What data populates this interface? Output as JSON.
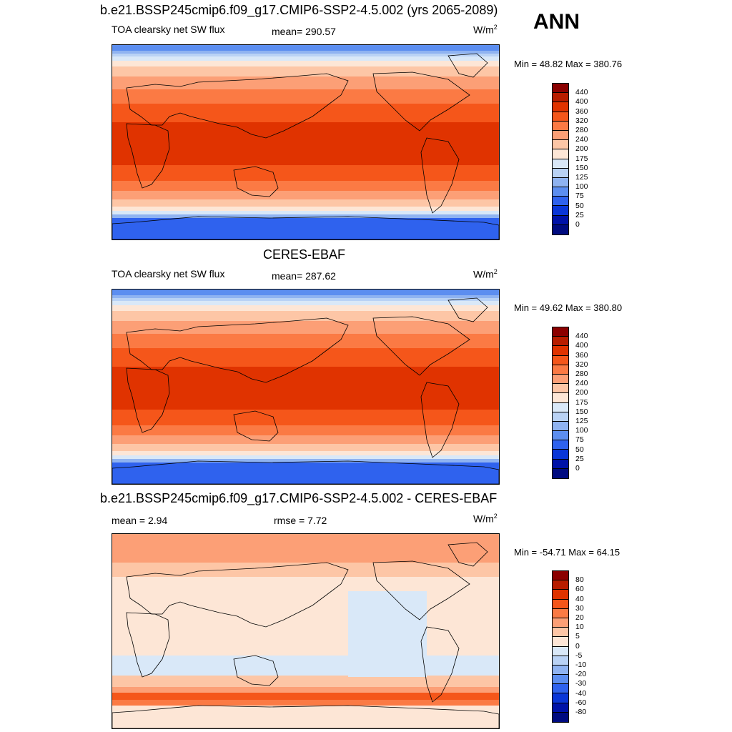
{
  "ann_label": "ANN",
  "panels": [
    {
      "title": "b.e21.BSSP245cmip6.f09_g17.CMIP6-SSP2-4.5.002 (yrs 2065-2089)",
      "left_label": "TOA clearsky net SW flux",
      "center_label": "mean= 290.57",
      "units_base": "W/m",
      "units_sup": "2",
      "minmax": "Min =  48.82 Max = 380.76"
    },
    {
      "title": "CERES-EBAF",
      "left_label": "TOA clearsky net SW flux",
      "center_label": "mean= 287.62",
      "units_base": "W/m",
      "units_sup": "2",
      "minmax": "Min =  49.62 Max = 380.80"
    },
    {
      "title": "b.e21.BSSP245cmip6.f09_g17.CMIP6-SSP2-4.5.002 - CERES-EBAF",
      "left_label": "mean =   2.94",
      "center_label": "rmse =   7.72",
      "units_base": "W/m",
      "units_sup": "2",
      "minmax": "Min = -54.71 Max =  64.15"
    }
  ],
  "abs_colorbar": {
    "labels": [
      "440",
      "400",
      "360",
      "320",
      "280",
      "240",
      "200",
      "175",
      "150",
      "125",
      "100",
      "75",
      "50",
      "25",
      "0"
    ],
    "colors": [
      "#8b0000",
      "#b81d00",
      "#e03300",
      "#f5561a",
      "#fb7a44",
      "#fc9f76",
      "#fdc6a6",
      "#fde6d6",
      "#d9e8f8",
      "#b9d2f5",
      "#8fb3f1",
      "#5c8ef0",
      "#2f62ee",
      "#0a36d8",
      "#0012a8",
      "#000b80"
    ]
  },
  "diff_colorbar": {
    "labels": [
      "80",
      "60",
      "40",
      "30",
      "20",
      "10",
      "5",
      "0",
      "-5",
      "-10",
      "-20",
      "-30",
      "-40",
      "-60",
      "-80"
    ],
    "colors": [
      "#8b0000",
      "#b81d00",
      "#e03300",
      "#f5561a",
      "#fb7a44",
      "#fc9f76",
      "#fdc6a6",
      "#fde6d6",
      "#d9e8f8",
      "#b9d2f5",
      "#8fb3f1",
      "#5c8ef0",
      "#2f62ee",
      "#0a36d8",
      "#0012a8",
      "#000b80"
    ]
  }
}
